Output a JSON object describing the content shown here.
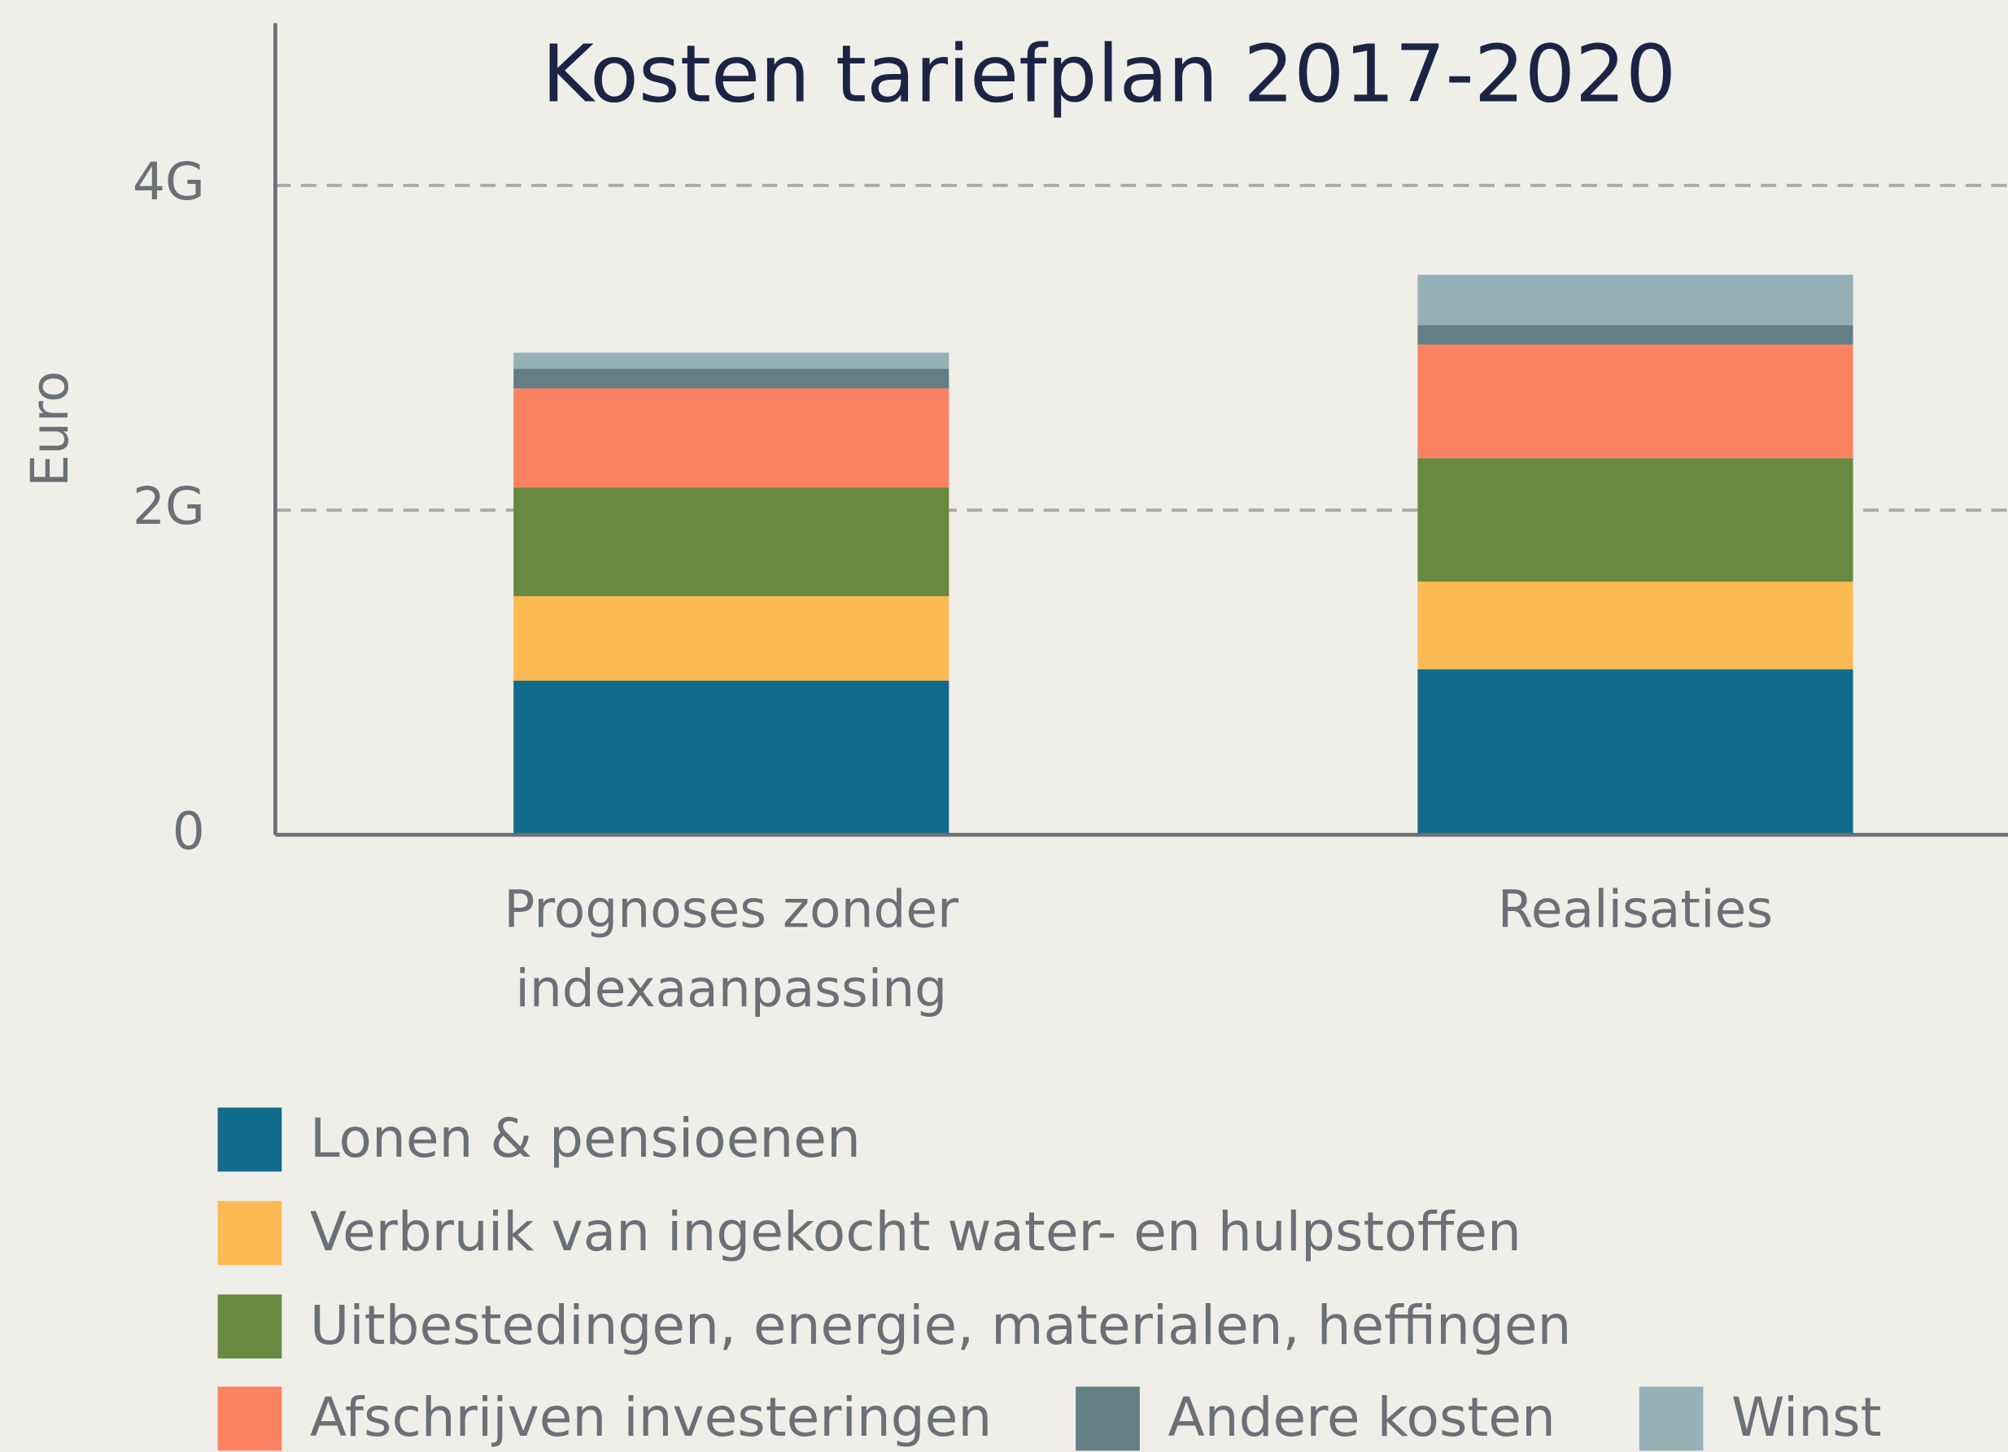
{
  "chart_data": {
    "type": "stacked_bar",
    "title": "Kosten tariefplan 2017-2020",
    "ylabel": "Euro",
    "categories": [
      "Prognoses zonder indexaanpassing",
      "Realisaties"
    ],
    "series": [
      {
        "name": "Lonen & pensioenen",
        "color": "#136b8c",
        "values": [
          950000000,
          1020000000
        ]
      },
      {
        "name": "Verbruik van ingekocht water- en hulpstoffen",
        "color": "#fdb952",
        "values": [
          520000000,
          540000000
        ]
      },
      {
        "name": "Uitbestedingen, energie, materialen, heffingen",
        "color": "#678a40",
        "values": [
          670000000,
          760000000
        ]
      },
      {
        "name": "Afschrijven investeringen",
        "color": "#fb8364",
        "values": [
          610000000,
          700000000
        ]
      },
      {
        "name": "Andere kosten",
        "color": "#637e84",
        "values": [
          120000000,
          120000000
        ]
      },
      {
        "name": "Winst",
        "color": "#95b1b6",
        "values": [
          100000000,
          310000000
        ]
      }
    ],
    "ylim": [
      0,
      5000000000
    ],
    "yticks": [
      0,
      {
        "value": 2000000000,
        "label": "2G"
      },
      {
        "value": 4000000000,
        "label": "4G"
      }
    ],
    "grid": true
  }
}
